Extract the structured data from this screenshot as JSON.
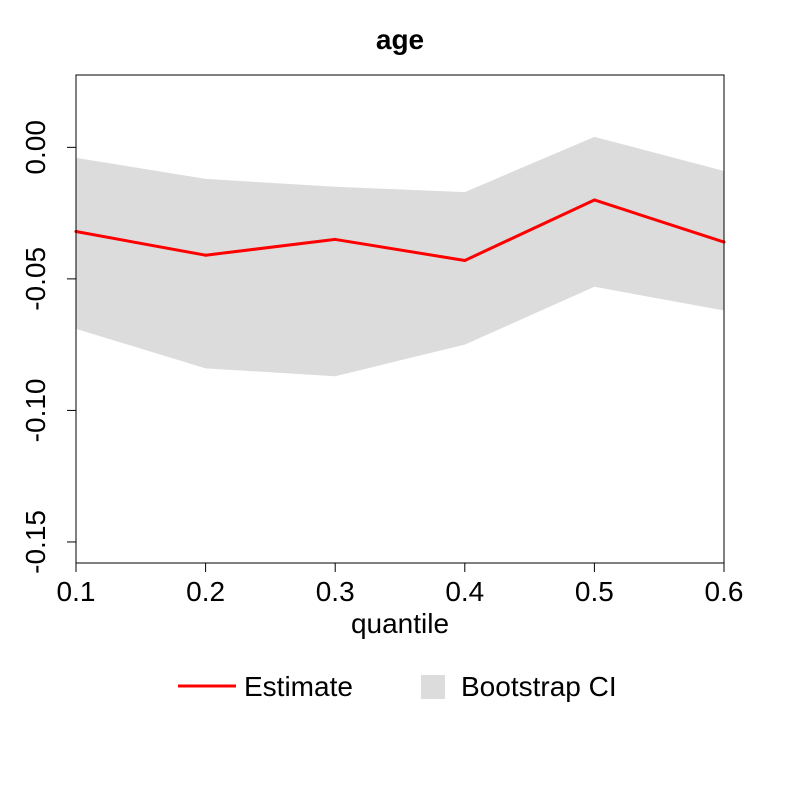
{
  "chart_data": {
    "type": "line",
    "title": "age",
    "xlabel": "quantile",
    "ylabel": "",
    "x": [
      0.1,
      0.2,
      0.3,
      0.4,
      0.5,
      0.6
    ],
    "xlim": [
      0.1,
      0.6
    ],
    "ylim": [
      -0.158,
      0.0275
    ],
    "x_ticks": [
      "0.1",
      "0.2",
      "0.3",
      "0.4",
      "0.5",
      "0.6"
    ],
    "x_tick_values": [
      0.1,
      0.2,
      0.3,
      0.4,
      0.5,
      0.6
    ],
    "y_ticks": [
      "-0.15",
      "-0.10",
      "-0.05",
      "0.00"
    ],
    "y_tick_values": [
      -0.15,
      -0.1,
      -0.05,
      0.0
    ],
    "grid": false,
    "series": [
      {
        "name": "Estimate",
        "values": [
          -0.032,
          -0.041,
          -0.035,
          -0.043,
          -0.02,
          -0.036
        ],
        "color": "#ff0000"
      }
    ],
    "band": {
      "name": "Bootstrap CI",
      "lower": [
        -0.069,
        -0.084,
        -0.087,
        -0.075,
        -0.053,
        -0.062
      ],
      "upper": [
        -0.004,
        -0.012,
        -0.015,
        -0.017,
        0.004,
        -0.009
      ],
      "color": "#dcdcdc"
    },
    "legend": {
      "placement": "bottom",
      "items": [
        {
          "label": "Estimate",
          "kind": "line",
          "color": "#ff0000"
        },
        {
          "label": "Bootstrap CI",
          "kind": "fill",
          "color": "#dcdcdc"
        }
      ]
    }
  }
}
